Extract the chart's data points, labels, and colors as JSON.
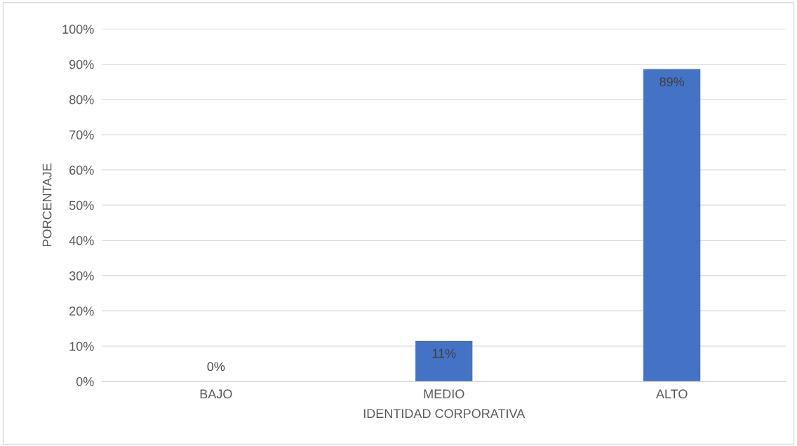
{
  "chart_data": {
    "type": "bar",
    "xlabel": "IDENTIDAD CORPORATIVA",
    "ylabel": "PORCENTAJE",
    "categories": [
      "BAJO",
      "MEDIO",
      "ALTO"
    ],
    "values": [
      0,
      11.5,
      88.6
    ],
    "value_labels": [
      "0%",
      "11%",
      "89%"
    ],
    "color": "#4472c4",
    "ylim": [
      0,
      100
    ],
    "yticks": [
      {
        "value": 0,
        "label": "0%"
      },
      {
        "value": 10,
        "label": "10%"
      },
      {
        "value": 20,
        "label": "20%"
      },
      {
        "value": 30,
        "label": "30%"
      },
      {
        "value": 40,
        "label": "40%"
      },
      {
        "value": 50,
        "label": "50%"
      },
      {
        "value": 60,
        "label": "60%"
      },
      {
        "value": 70,
        "label": "70%"
      },
      {
        "value": 80,
        "label": "80%"
      },
      {
        "value": 90,
        "label": "90%"
      },
      {
        "value": 100,
        "label": "100%"
      }
    ],
    "grid": "y",
    "legend": false
  }
}
